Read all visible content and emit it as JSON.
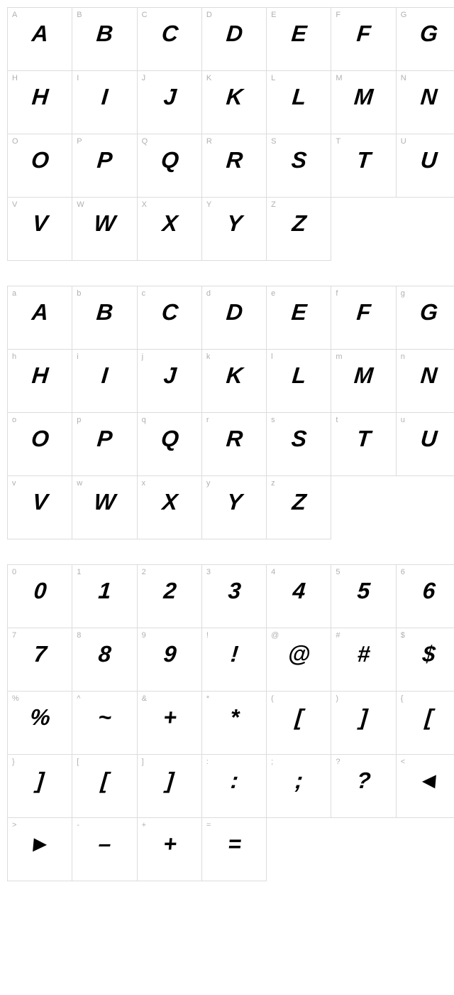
{
  "cell_border_color": "#dcdcdc",
  "label_color": "#b0b0b0",
  "glyph_color": "#000000",
  "background_color": "#ffffff",
  "glyph_fontsize": 32,
  "label_fontsize": 11,
  "sections": [
    {
      "name": "uppercase",
      "cells": [
        {
          "label": "A",
          "glyph": "A"
        },
        {
          "label": "B",
          "glyph": "B"
        },
        {
          "label": "C",
          "glyph": "C"
        },
        {
          "label": "D",
          "glyph": "D"
        },
        {
          "label": "E",
          "glyph": "E"
        },
        {
          "label": "F",
          "glyph": "F"
        },
        {
          "label": "G",
          "glyph": "G"
        },
        {
          "label": "H",
          "glyph": "H"
        },
        {
          "label": "I",
          "glyph": "I"
        },
        {
          "label": "J",
          "glyph": "J"
        },
        {
          "label": "K",
          "glyph": "K"
        },
        {
          "label": "L",
          "glyph": "L"
        },
        {
          "label": "M",
          "glyph": "M"
        },
        {
          "label": "N",
          "glyph": "N"
        },
        {
          "label": "O",
          "glyph": "O"
        },
        {
          "label": "P",
          "glyph": "P"
        },
        {
          "label": "Q",
          "glyph": "Q"
        },
        {
          "label": "R",
          "glyph": "R"
        },
        {
          "label": "S",
          "glyph": "S"
        },
        {
          "label": "T",
          "glyph": "T"
        },
        {
          "label": "U",
          "glyph": "U"
        },
        {
          "label": "V",
          "glyph": "V"
        },
        {
          "label": "W",
          "glyph": "W"
        },
        {
          "label": "X",
          "glyph": "X"
        },
        {
          "label": "Y",
          "glyph": "Y"
        },
        {
          "label": "Z",
          "glyph": "Z"
        },
        {
          "empty": true
        },
        {
          "empty": true
        }
      ]
    },
    {
      "name": "lowercase",
      "cells": [
        {
          "label": "a",
          "glyph": "A"
        },
        {
          "label": "b",
          "glyph": "B"
        },
        {
          "label": "c",
          "glyph": "C"
        },
        {
          "label": "d",
          "glyph": "D"
        },
        {
          "label": "e",
          "glyph": "E"
        },
        {
          "label": "f",
          "glyph": "F"
        },
        {
          "label": "g",
          "glyph": "G"
        },
        {
          "label": "h",
          "glyph": "H"
        },
        {
          "label": "i",
          "glyph": "I"
        },
        {
          "label": "j",
          "glyph": "J"
        },
        {
          "label": "k",
          "glyph": "K"
        },
        {
          "label": "l",
          "glyph": "L"
        },
        {
          "label": "m",
          "glyph": "M"
        },
        {
          "label": "n",
          "glyph": "N"
        },
        {
          "label": "o",
          "glyph": "O"
        },
        {
          "label": "p",
          "glyph": "P"
        },
        {
          "label": "q",
          "glyph": "Q"
        },
        {
          "label": "r",
          "glyph": "R"
        },
        {
          "label": "s",
          "glyph": "S"
        },
        {
          "label": "t",
          "glyph": "T"
        },
        {
          "label": "u",
          "glyph": "U"
        },
        {
          "label": "v",
          "glyph": "V"
        },
        {
          "label": "w",
          "glyph": "W"
        },
        {
          "label": "x",
          "glyph": "X"
        },
        {
          "label": "y",
          "glyph": "Y"
        },
        {
          "label": "z",
          "glyph": "Z"
        },
        {
          "empty": true
        },
        {
          "empty": true
        }
      ]
    },
    {
      "name": "numbers-symbols",
      "cells": [
        {
          "label": "0",
          "glyph": "0"
        },
        {
          "label": "1",
          "glyph": "1"
        },
        {
          "label": "2",
          "glyph": "2"
        },
        {
          "label": "3",
          "glyph": "3"
        },
        {
          "label": "4",
          "glyph": "4"
        },
        {
          "label": "5",
          "glyph": "5"
        },
        {
          "label": "6",
          "glyph": "6"
        },
        {
          "label": "7",
          "glyph": "7"
        },
        {
          "label": "8",
          "glyph": "8"
        },
        {
          "label": "9",
          "glyph": "9"
        },
        {
          "label": "!",
          "glyph": "!"
        },
        {
          "label": "@",
          "glyph": "@"
        },
        {
          "label": "#",
          "glyph": "#"
        },
        {
          "label": "$",
          "glyph": "$"
        },
        {
          "label": "%",
          "glyph": "%"
        },
        {
          "label": "^",
          "glyph": "~"
        },
        {
          "label": "&",
          "glyph": "+"
        },
        {
          "label": "*",
          "glyph": "*"
        },
        {
          "label": "(",
          "glyph": "["
        },
        {
          "label": ")",
          "glyph": "]"
        },
        {
          "label": "{",
          "glyph": "["
        },
        {
          "label": "}",
          "glyph": "]"
        },
        {
          "label": "[",
          "glyph": "["
        },
        {
          "label": "]",
          "glyph": "]"
        },
        {
          "label": ":",
          "glyph": ":"
        },
        {
          "label": ";",
          "glyph": ";"
        },
        {
          "label": "?",
          "glyph": "?"
        },
        {
          "label": "<",
          "glyph": "◄"
        },
        {
          "label": ">",
          "glyph": "►"
        },
        {
          "label": "-",
          "glyph": "–"
        },
        {
          "label": "+",
          "glyph": "+"
        },
        {
          "label": "=",
          "glyph": "="
        },
        {
          "empty": true
        },
        {
          "empty": true
        },
        {
          "empty": true
        }
      ]
    }
  ]
}
